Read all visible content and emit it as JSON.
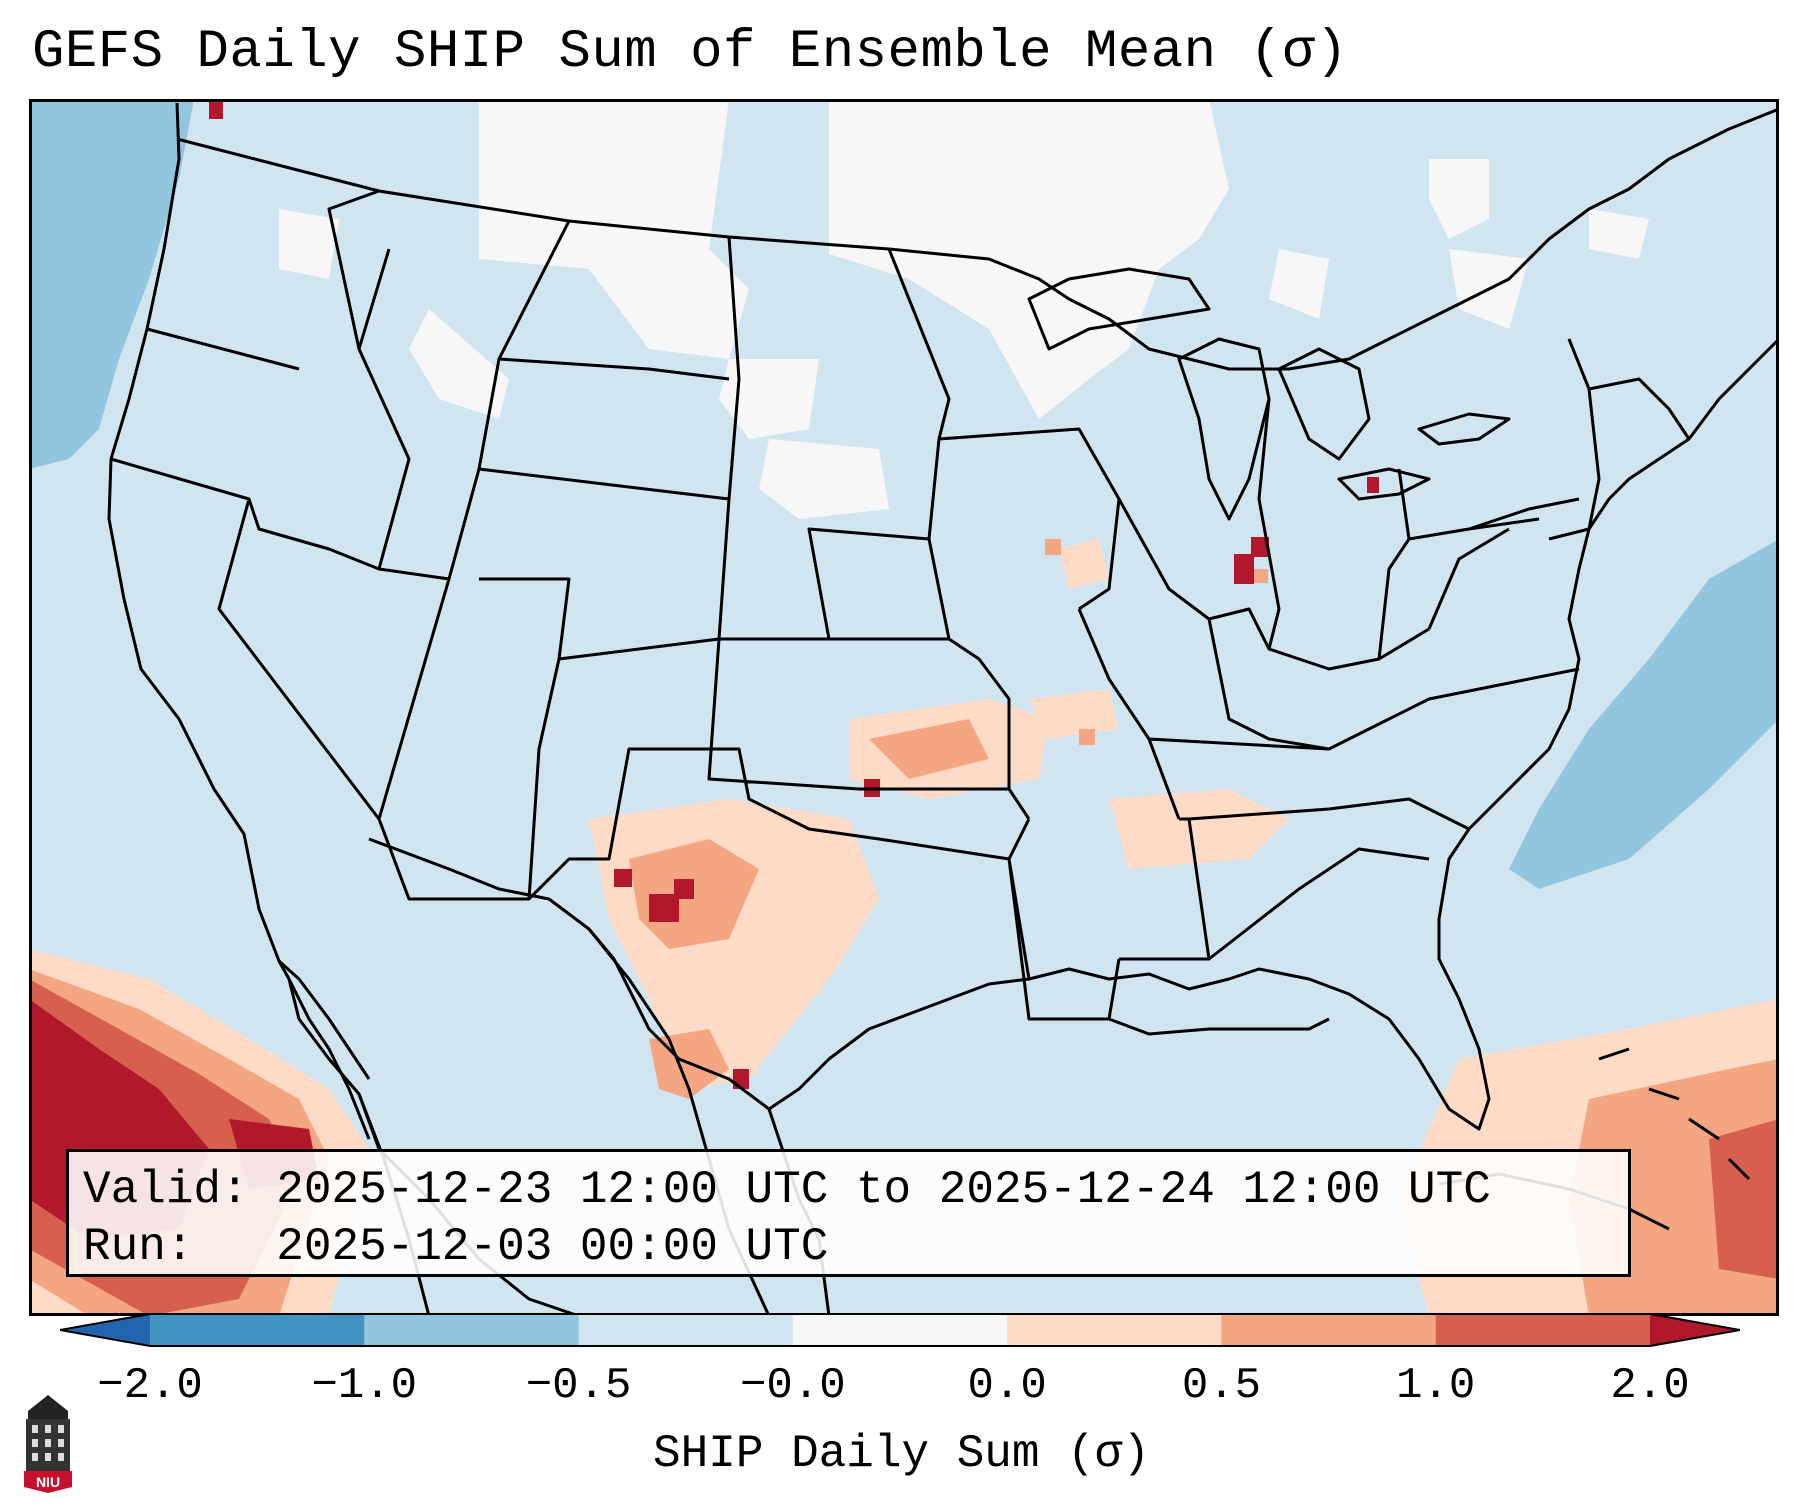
{
  "title": "GEFS Daily SHIP Sum of Ensemble Mean (σ)",
  "info": {
    "valid_label": "Valid:",
    "valid_value": "2025-12-23 12:00 UTC to 2025-12-24 12:00 UTC",
    "run_label": "Run:",
    "run_value": "2025-12-03 00:00 UTC"
  },
  "colorbar": {
    "label": "SHIP Daily Sum (σ)",
    "ticks": [
      "−2.0",
      "−1.0",
      "−0.5",
      "−0.0",
      "0.0",
      "0.5",
      "1.0",
      "2.0"
    ],
    "colors": [
      "#4393c3",
      "#92c5de",
      "#d1e5f0",
      "#f7f7f7",
      "#fddbc7",
      "#f4a582",
      "#d6604d"
    ],
    "extend_low_color": "#2166ac",
    "extend_high_color": "#b2182b"
  },
  "logo": {
    "text": "NIU",
    "icon": "university-tower-logo"
  },
  "map": {
    "region": "contiguous-united-states",
    "projection": "lambert-conformal"
  }
}
